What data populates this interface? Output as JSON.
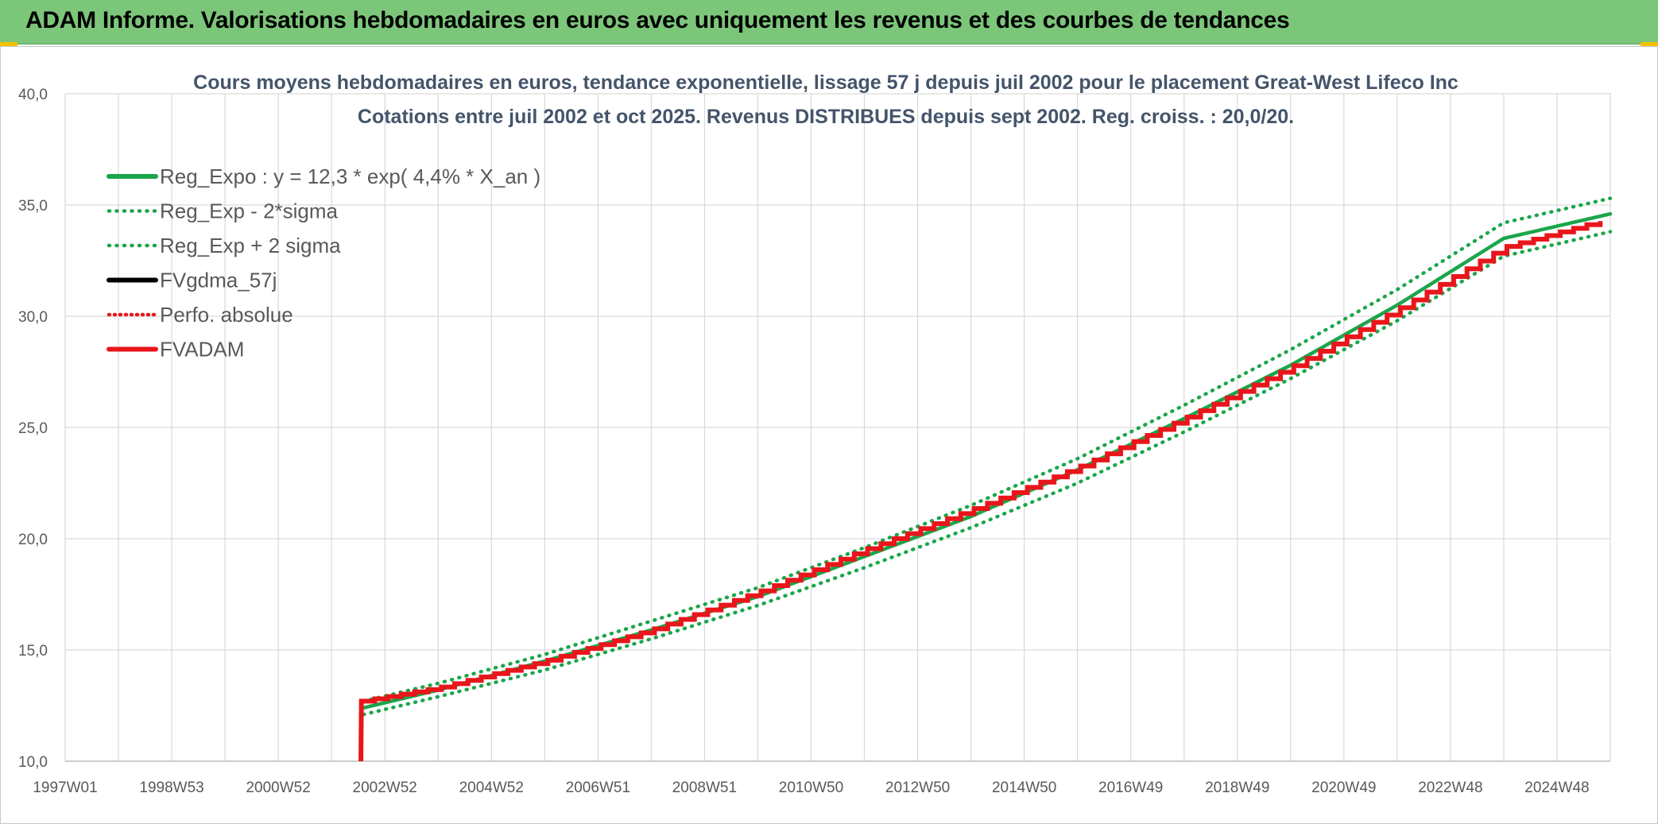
{
  "header": {
    "title": "ADAM Informe. Valorisations hebdomadaires en euros avec uniquement les revenus et des courbes de tendances"
  },
  "colors": {
    "banner": "#7cc67a",
    "trend": "#1aa64a",
    "fvadam": "#e8161b",
    "fvgdma": "#000000",
    "perfo": "#e8161b",
    "grid": "#d9d9d9",
    "title": "#44546a"
  },
  "chart_data": {
    "type": "line",
    "title_line1": "Cours moyens hebdomadaires en euros, tendance exponentielle, lissage 57 j depuis juil 2002 pour le placement Great-West Lifeco Inc",
    "title_line2": "Cotations entre juil 2002 et oct 2025. Revenus DISTRIBUES depuis sept 2002. Reg. croiss. : 20,0/20.",
    "xlabel": "",
    "ylabel": "",
    "ylim": [
      10,
      40
    ],
    "yticks": [
      "10,0",
      "15,0",
      "20,0",
      "25,0",
      "30,0",
      "35,0",
      "40,0"
    ],
    "xlim": [
      1997.0,
      2026.0
    ],
    "xticks": [
      {
        "label": "1997W01",
        "x": 1997.0
      },
      {
        "label": "1998W53",
        "x": 1999.0
      },
      {
        "label": "2000W52",
        "x": 2001.0
      },
      {
        "label": "2002W52",
        "x": 2003.0
      },
      {
        "label": "2004W52",
        "x": 2005.0
      },
      {
        "label": "2006W51",
        "x": 2007.0
      },
      {
        "label": "2008W51",
        "x": 2009.0
      },
      {
        "label": "2010W50",
        "x": 2011.0
      },
      {
        "label": "2012W50",
        "x": 2013.0
      },
      {
        "label": "2014W50",
        "x": 2015.0
      },
      {
        "label": "2016W49",
        "x": 2017.0
      },
      {
        "label": "2018W49",
        "x": 2019.0
      },
      {
        "label": "2020W49",
        "x": 2021.0
      },
      {
        "label": "2022W48",
        "x": 2023.0
      },
      {
        "label": "2024W48",
        "x": 2025.0
      }
    ],
    "legend": [
      {
        "name": "Reg_Expo : y = 12,3 * exp( 4,4% *  X_an )",
        "style": "solid",
        "color": "#1aa64a"
      },
      {
        "name": "Reg_Exp - 2*sigma",
        "style": "dotted",
        "color": "#1aa64a"
      },
      {
        "name": "Reg_Exp + 2 sigma",
        "style": "dotted",
        "color": "#1aa64a"
      },
      {
        "name": "FVgdma_57j",
        "style": "solid",
        "color": "#000000"
      },
      {
        "name": "Perfo. absolue",
        "style": "dotted",
        "color": "#e8161b"
      },
      {
        "name": "FVADAM",
        "style": "solid",
        "color": "#e8161b"
      }
    ],
    "legend_position": "top-left",
    "grid": true,
    "series": [
      {
        "name": "Reg_Expo : y = 12,3 * exp( 4,4% *  X_an )",
        "x": [
          2002.6,
          2004,
          2006,
          2008,
          2010,
          2012,
          2014,
          2016,
          2018,
          2020,
          2022,
          2024,
          2026
        ],
        "values": [
          12.4,
          13.2,
          14.5,
          15.9,
          17.4,
          19.2,
          21.0,
          23.1,
          25.4,
          27.8,
          30.5,
          33.5,
          34.6
        ]
      },
      {
        "name": "Reg_Exp - 2*sigma",
        "x": [
          2002.6,
          2004,
          2006,
          2008,
          2010,
          2012,
          2014,
          2016,
          2018,
          2020,
          2022,
          2024,
          2026
        ],
        "values": [
          12.1,
          12.9,
          14.1,
          15.5,
          17.0,
          18.7,
          20.5,
          22.5,
          24.8,
          27.2,
          29.8,
          32.7,
          33.8
        ]
      },
      {
        "name": "Reg_Exp + 2 sigma",
        "x": [
          2002.6,
          2004,
          2006,
          2008,
          2010,
          2012,
          2014,
          2016,
          2018,
          2020,
          2022,
          2024,
          2026
        ],
        "values": [
          12.7,
          13.5,
          14.8,
          16.3,
          17.8,
          19.6,
          21.5,
          23.6,
          26.0,
          28.5,
          31.2,
          34.2,
          35.3
        ]
      },
      {
        "name": "FVADAM",
        "x": [
          2002.55,
          2002.56,
          2004,
          2006,
          2008,
          2010,
          2012,
          2014,
          2016,
          2018,
          2020,
          2022,
          2024,
          2026
        ],
        "values": [
          10.0,
          12.7,
          13.3,
          14.5,
          15.9,
          17.6,
          19.5,
          21.3,
          23.2,
          25.4,
          27.7,
          30.3,
          33.1,
          34.4
        ]
      }
    ]
  }
}
